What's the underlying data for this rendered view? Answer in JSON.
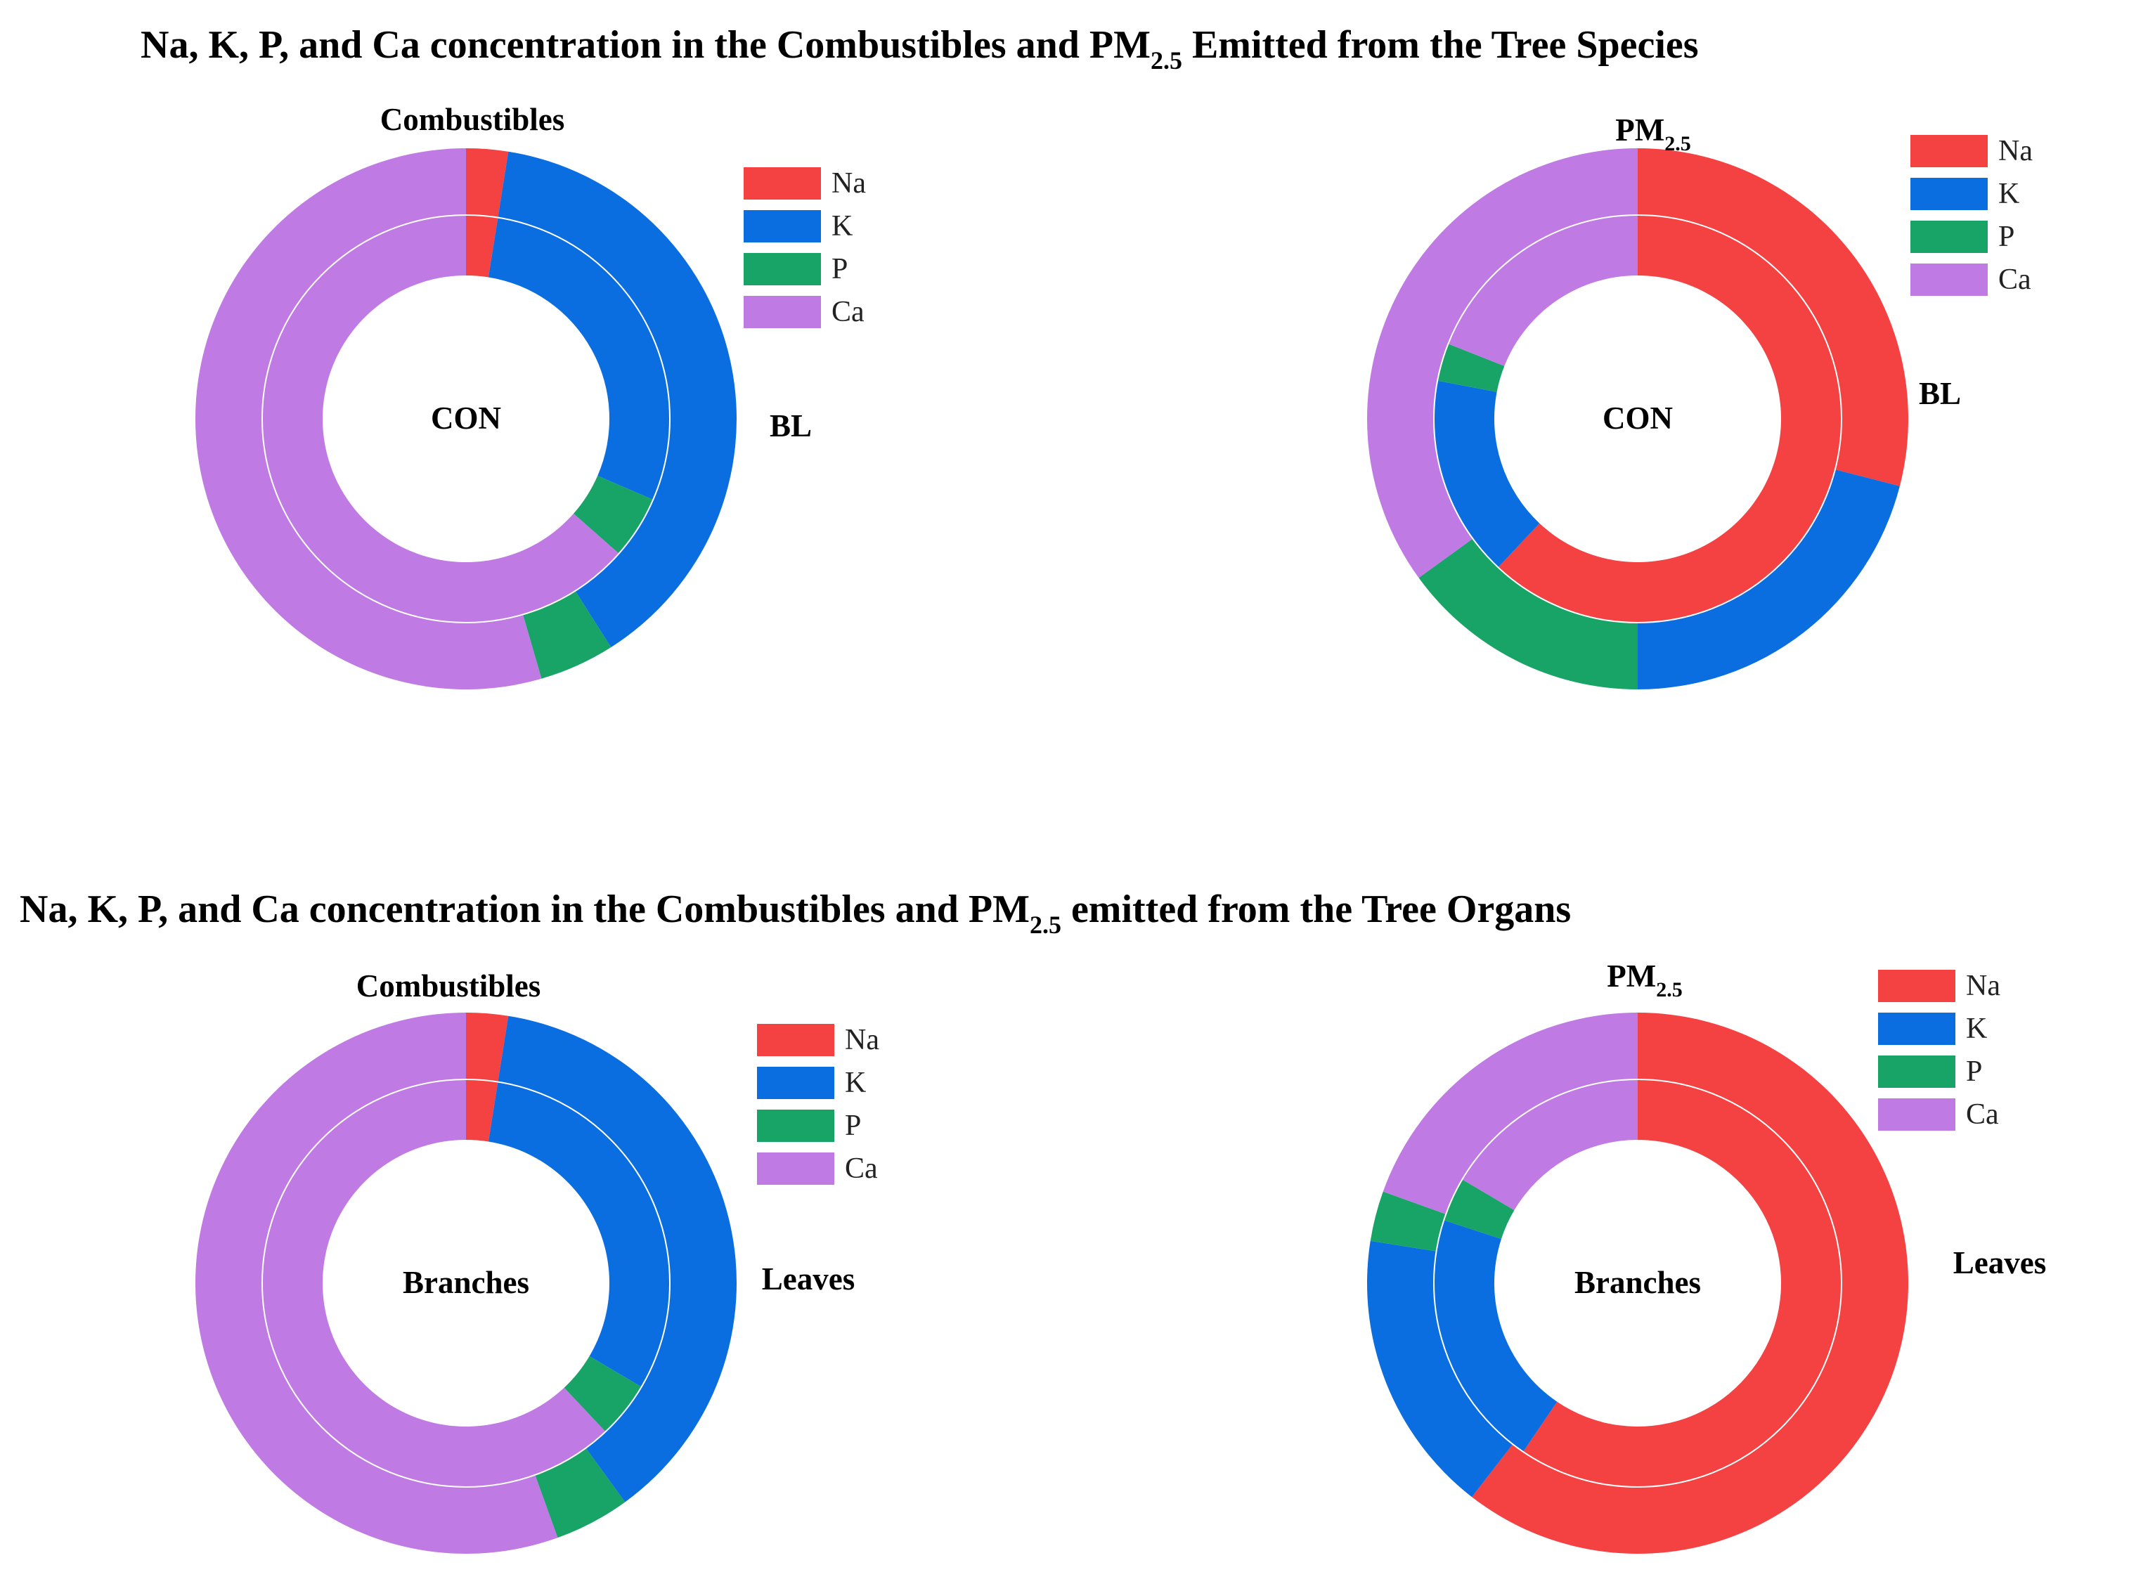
{
  "sections": [
    {
      "title_main": "Na, K, P, and Ca concentration in the Combustibles and PM",
      "title_sub": "2.5",
      "title_tail": " Emitted from the Tree Species"
    },
    {
      "title_main": "Na, K, P, and Ca concentration in the Combustibles and PM",
      "title_sub": "2.5",
      "title_tail": " emitted from the Tree Organs"
    }
  ],
  "colors": {
    "Na": "#f44242",
    "K": "#0a6ee0",
    "P": "#18a466",
    "Ca": "#c07ae3"
  },
  "chart_data": [
    {
      "type": "pie",
      "subtype": "nested-donut",
      "label_main": "Combustibles",
      "label_sub": "",
      "legend": [
        "Na",
        "K",
        "P",
        "Ca"
      ],
      "inner_ring": {
        "name": "CON",
        "values": {
          "Na": 2.5,
          "K": 29,
          "P": 5,
          "Ca": 63.5
        }
      },
      "outer_ring": {
        "name": "BL",
        "values": {
          "Na": 2.5,
          "K": 38.5,
          "P": 4.5,
          "Ca": 54.5
        }
      }
    },
    {
      "type": "pie",
      "subtype": "nested-donut",
      "label_main": "PM",
      "label_sub": "2.5",
      "legend": [
        "Na",
        "K",
        "P",
        "Ca"
      ],
      "inner_ring": {
        "name": "CON",
        "values": {
          "Na": 62,
          "K": 16,
          "P": 3,
          "Ca": 19
        }
      },
      "outer_ring": {
        "name": "BL",
        "values": {
          "Na": 29,
          "K": 21,
          "P": 15,
          "Ca": 35
        }
      }
    },
    {
      "type": "pie",
      "subtype": "nested-donut",
      "label_main": "Combustibles",
      "label_sub": "",
      "legend": [
        "Na",
        "K",
        "P",
        "Ca"
      ],
      "inner_ring": {
        "name": "Branches",
        "values": {
          "Na": 2.5,
          "K": 31,
          "P": 4.5,
          "Ca": 62
        }
      },
      "outer_ring": {
        "name": "Leaves",
        "values": {
          "Na": 2.5,
          "K": 37.5,
          "P": 4.5,
          "Ca": 55.5
        }
      }
    },
    {
      "type": "pie",
      "subtype": "nested-donut",
      "label_main": "PM",
      "label_sub": "2.5",
      "legend": [
        "Na",
        "K",
        "P",
        "Ca"
      ],
      "inner_ring": {
        "name": "Branches",
        "values": {
          "Na": 59.5,
          "K": 20.5,
          "P": 3.5,
          "Ca": 16.5
        }
      },
      "outer_ring": {
        "name": "Leaves",
        "values": {
          "Na": 60.5,
          "K": 17,
          "P": 3,
          "Ca": 19.5
        }
      }
    }
  ]
}
